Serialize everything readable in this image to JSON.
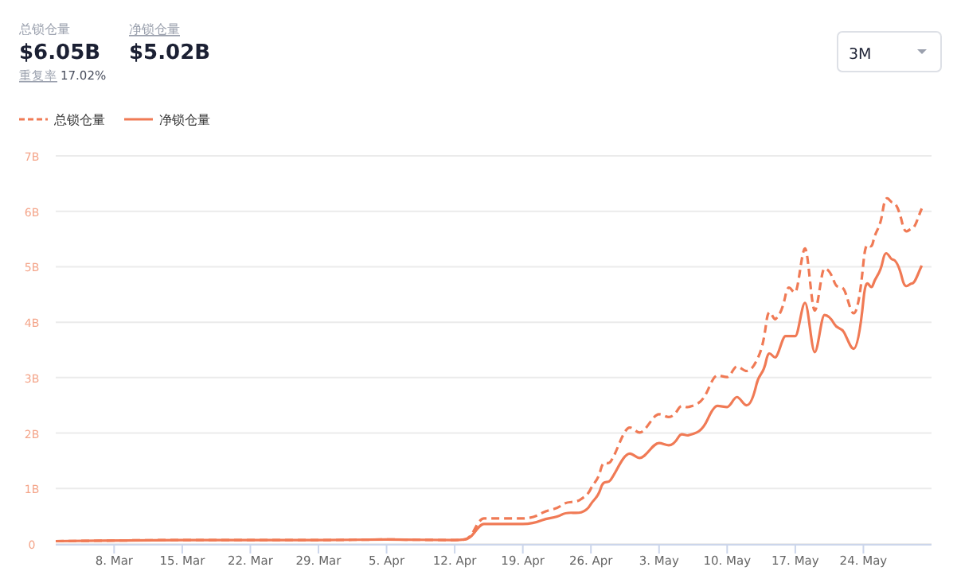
{
  "chart_data": {
    "type": "line",
    "annotations": [
      "总锁仓量",
      "$6.05B",
      "净锁仓量",
      "$5.02B",
      "重复率",
      "17.02%",
      "3M"
    ],
    "x": [
      "--03-02",
      "--03-15",
      "--03-29",
      "--04-05",
      "--04-12",
      "--04-13",
      "--04-14",
      "--04-15",
      "--04-19",
      "--04-21",
      "--04-23",
      "--04-25",
      "--04-26",
      "--04-27",
      "--04-28",
      "--04-30",
      "--05-01",
      "--05-03",
      "--05-04",
      "--05-05",
      "--05-06",
      "--05-08",
      "--05-09",
      "--05-10",
      "--05-11",
      "--05-12",
      "--05-13",
      "--05-14",
      "--05-15",
      "--05-16",
      "--05-17",
      "--05-18",
      "--05-19",
      "--05-20",
      "--05-21",
      "--05-22",
      "--05-23",
      "--05-24",
      "--05-25",
      "--05-26",
      "--05-27",
      "--05-28",
      "--05-29",
      "--05-30"
    ],
    "series": [
      {
        "name": "总锁仓量",
        "color": "#f07a55",
        "line_style": "dashed",
        "values": [
          0.05,
          0.07,
          0.07,
          0.08,
          0.07,
          0.08,
          0.25,
          0.46,
          0.46,
          0.56,
          0.7,
          0.81,
          1.0,
          1.34,
          1.48,
          2.1,
          2.01,
          2.34,
          2.29,
          2.44,
          2.47,
          2.77,
          3.04,
          3.01,
          3.2,
          3.12,
          3.3,
          3.97,
          4.06,
          4.49,
          4.54,
          5.33,
          4.21,
          4.97,
          4.73,
          4.59,
          4.16,
          5.07,
          5.45,
          6.02,
          6.16,
          5.78,
          5.69,
          6.05
        ]
      },
      {
        "name": "净锁仓量",
        "color": "#f07a55",
        "line_style": "solid",
        "values": [
          0.05,
          0.07,
          0.07,
          0.08,
          0.07,
          0.08,
          0.2,
          0.36,
          0.36,
          0.43,
          0.53,
          0.57,
          0.72,
          1.0,
          1.15,
          1.63,
          1.55,
          1.82,
          1.78,
          1.93,
          1.96,
          2.25,
          2.49,
          2.47,
          2.65,
          2.5,
          2.87,
          3.3,
          3.37,
          3.75,
          3.75,
          4.35,
          3.46,
          4.13,
          3.97,
          3.82,
          3.52,
          4.4,
          4.68,
          5.11,
          5.13,
          4.78,
          4.7,
          5.02
        ]
      }
    ],
    "xlim": [
      "--03-02",
      "--05-31"
    ],
    "xticks": [
      {
        "value": "--03-08",
        "label": "8. Mar"
      },
      {
        "value": "--03-15",
        "label": "15. Mar"
      },
      {
        "value": "--03-22",
        "label": "22. Mar"
      },
      {
        "value": "--03-29",
        "label": "29. Mar"
      },
      {
        "value": "--04-05",
        "label": "5. Apr"
      },
      {
        "value": "--04-12",
        "label": "12. Apr"
      },
      {
        "value": "--04-19",
        "label": "19. Apr"
      },
      {
        "value": "--04-26",
        "label": "26. Apr"
      },
      {
        "value": "--05-03",
        "label": "3. May"
      },
      {
        "value": "--05-10",
        "label": "10. May"
      },
      {
        "value": "--05-17",
        "label": "17. May"
      },
      {
        "value": "--05-24",
        "label": "24. May"
      }
    ],
    "ylim": [
      0,
      7
    ],
    "yticks": [
      0,
      {
        "value": 1,
        "label": "1B"
      },
      {
        "value": 2,
        "label": "2B"
      },
      {
        "value": 3,
        "label": "3B"
      },
      {
        "value": 4,
        "label": "4B"
      },
      {
        "value": 5,
        "label": "5B"
      },
      {
        "value": 6,
        "label": "6B"
      },
      {
        "value": 7,
        "label": "7B"
      }
    ],
    "grid": "y",
    "legend": "top left",
    "marker": "none"
  }
}
